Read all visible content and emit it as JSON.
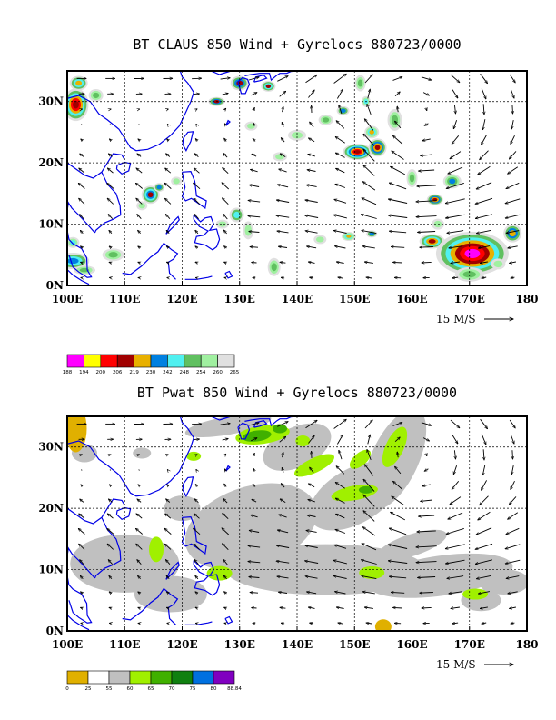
{
  "panels": [
    {
      "title": "BT CLAUS 850 Wind + Gyrelocs 880723/0000",
      "field": "claus",
      "colorbar": {
        "labels": [
          "188",
          "194",
          "200",
          "206",
          "219",
          "230",
          "242",
          "248",
          "254",
          "260",
          "265"
        ],
        "colors": [
          "#ff00ff",
          "#ffff00",
          "#ff0000",
          "#a00000",
          "#e8b000",
          "#0080e0",
          "#50f0f0",
          "#60c060",
          "#a0f0a0",
          "#e0e0e0"
        ]
      }
    },
    {
      "title": "BT Pwat 850 Wind + Gyrelocs 880723/0000",
      "field": "pwat",
      "colorbar": {
        "labels": [
          "0",
          "25",
          "55",
          "60",
          "65",
          "70",
          "75",
          "80",
          "88.84"
        ],
        "colors": [
          "#e0b000",
          "#ffffff",
          "#c0c0c0",
          "#a0f000",
          "#40b000",
          "#108010",
          "#0070e0",
          "#8000c0"
        ]
      }
    }
  ],
  "map": {
    "lon_labels": [
      "100E",
      "110E",
      "120E",
      "130E",
      "140E",
      "150E",
      "160E",
      "170E",
      "180"
    ],
    "lat_labels": [
      "30N",
      "20N",
      "10N",
      "0N"
    ],
    "reference_vector": "15 M/S"
  }
}
